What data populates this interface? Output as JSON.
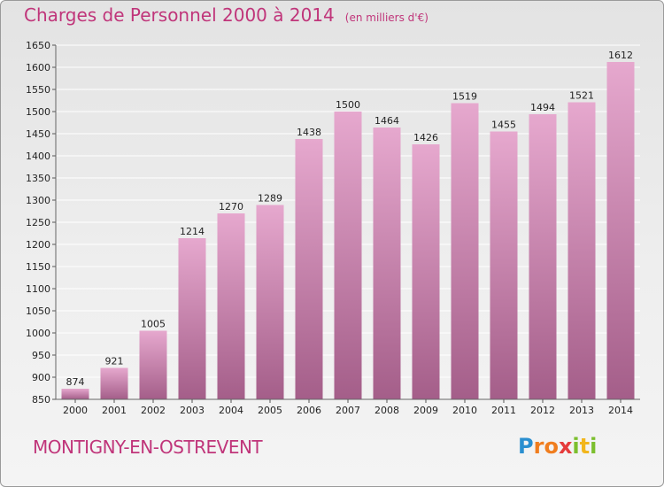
{
  "colors": {
    "title": "#c0357a",
    "bar_top": "#e6a8ce",
    "bar_bottom": "#a45e89",
    "grid": "#ffffff",
    "axis_text": "#222222"
  },
  "chart_data": {
    "type": "bar",
    "title": "Charges de Personnel 2000 à 2014",
    "subtitle": "(en milliers d'€)",
    "categories": [
      "2000",
      "2001",
      "2002",
      "2003",
      "2004",
      "2005",
      "2006",
      "2007",
      "2008",
      "2009",
      "2010",
      "2011",
      "2012",
      "2013",
      "2014"
    ],
    "values": [
      874,
      921,
      1005,
      1214,
      1270,
      1289,
      1438,
      1500,
      1464,
      1426,
      1519,
      1455,
      1494,
      1521,
      1612
    ],
    "ylim": [
      850,
      1650
    ],
    "yticks": [
      850,
      900,
      950,
      1000,
      1050,
      1100,
      1150,
      1200,
      1250,
      1300,
      1350,
      1400,
      1450,
      1500,
      1550,
      1600,
      1650
    ],
    "grid": true,
    "data_labels": true,
    "xlabel": "",
    "ylabel": ""
  },
  "footer": {
    "commune": "MONTIGNY-EN-OSTREVENT",
    "logo_letters": [
      "P",
      "r",
      "o",
      "x",
      "i",
      "t",
      "i"
    ],
    "logo_colors": [
      "#2a8fd0",
      "#f07d1e",
      "#f07d1e",
      "#e53b3b",
      "#7cbf2e",
      "#f2b61c",
      "#7cbf2e"
    ]
  }
}
